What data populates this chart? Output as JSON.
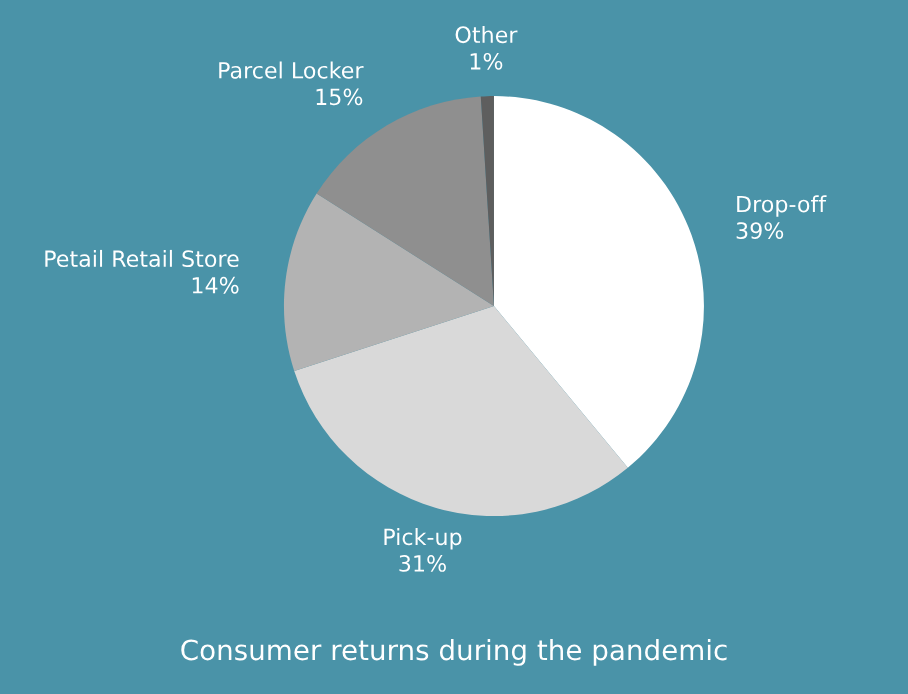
{
  "chart_data": {
    "type": "pie",
    "title": "Consumer returns during the pandemic",
    "categories": [
      "Drop-off",
      "Pick-up",
      "Petail Retail Store",
      "Parcel Locker",
      "Other"
    ],
    "values": [
      39,
      31,
      14,
      15,
      1
    ],
    "value_labels": [
      "39%",
      "31%",
      "14%",
      "15%",
      "1%"
    ],
    "colors": [
      "#ffffff",
      "#d9d9d9",
      "#b3b3b3",
      "#8f8f8f",
      "#5e5e5e"
    ],
    "legend": false
  }
}
